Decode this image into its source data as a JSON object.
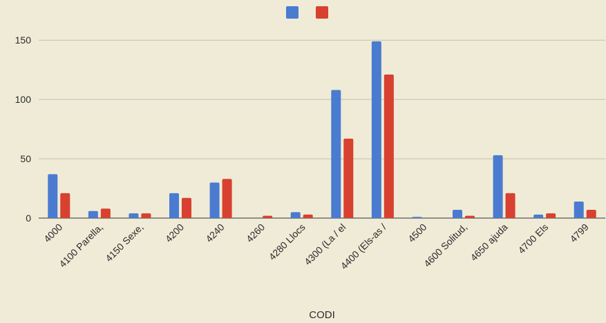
{
  "chart_data": {
    "type": "bar",
    "xlabel": "CODI",
    "ylabel": "",
    "ylim": [
      0,
      160
    ],
    "yticks": [
      0,
      50,
      100,
      150
    ],
    "grid": true,
    "legend": "top-center",
    "categories": [
      "4000",
      "4100 Parella,",
      "4150 Sexe,",
      "4200",
      "4240",
      "4260",
      "4280 Llocs",
      "4300 (La / el",
      "4400 (Els-as /",
      "4500",
      "4600 Solitud,",
      "4650 ajuda",
      "4700 Els",
      "4799"
    ],
    "series": [
      {
        "color": "#4a7bd0",
        "values": [
          37,
          6,
          4,
          21,
          30,
          0,
          5,
          108,
          149,
          1,
          7,
          53,
          3,
          14
        ]
      },
      {
        "color": "#d8402f",
        "values": [
          21,
          8,
          4,
          17,
          33,
          2,
          3,
          67,
          121,
          0,
          2,
          21,
          4,
          7
        ]
      }
    ]
  }
}
